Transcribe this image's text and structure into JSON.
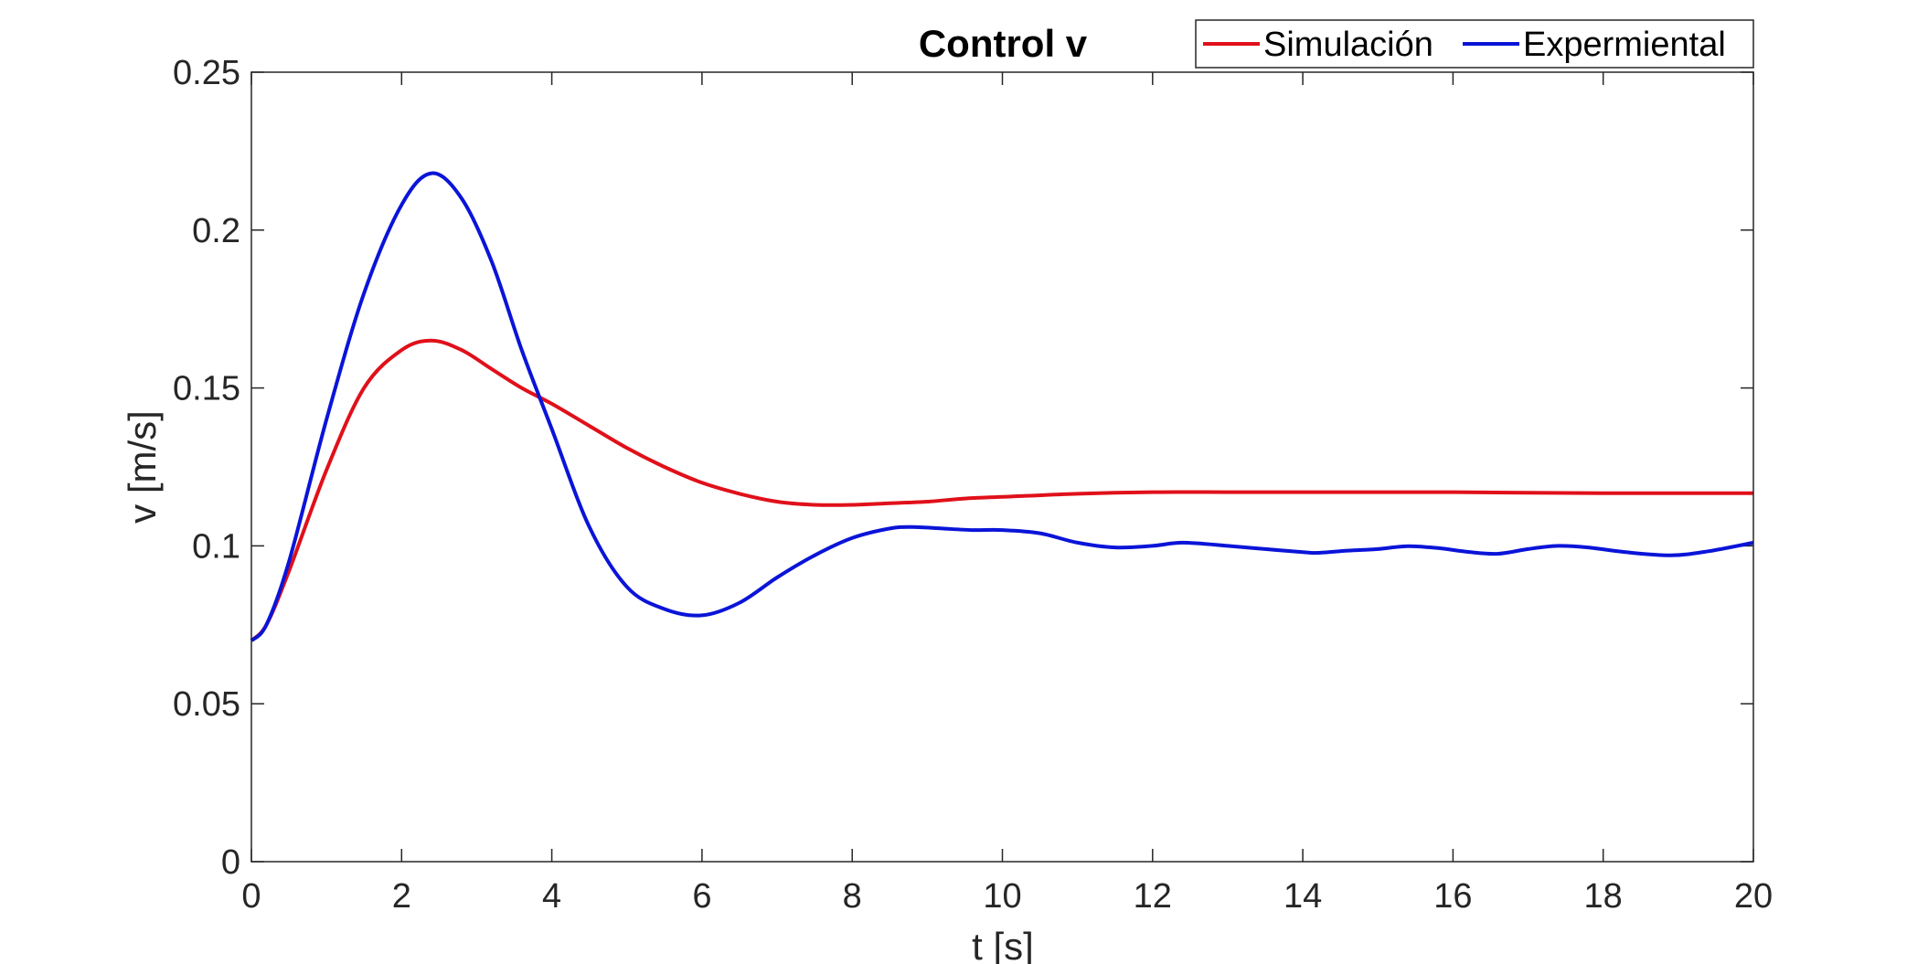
{
  "chart_data": {
    "type": "line",
    "title": "Control v",
    "xlabel": "t [s]",
    "ylabel": "v [m/s]",
    "xlim": [
      0,
      20
    ],
    "ylim": [
      0,
      0.25
    ],
    "xticks": [
      0,
      2,
      4,
      6,
      8,
      10,
      12,
      14,
      16,
      18,
      20
    ],
    "xtick_labels": [
      "0",
      "2",
      "4",
      "6",
      "8",
      "10",
      "12",
      "14",
      "16",
      "18",
      "20"
    ],
    "yticks": [
      0,
      0.05,
      0.1,
      0.15,
      0.2,
      0.25
    ],
    "ytick_labels": [
      "0",
      "0.05",
      "0.1",
      "0.15",
      "0.2",
      "0.25"
    ],
    "grid": false,
    "legend_position": "top-right",
    "series": [
      {
        "name": "Simulación",
        "color": "#e0101a",
        "x": [
          0,
          0.2,
          0.5,
          1.0,
          1.5,
          2.0,
          2.4,
          2.8,
          3.2,
          3.6,
          4.0,
          4.5,
          5.0,
          5.5,
          6.0,
          6.5,
          7.0,
          7.5,
          8.0,
          8.5,
          9.0,
          9.5,
          10.0,
          11.0,
          12.0,
          13.0,
          14.0,
          15.0,
          16.0,
          17.0,
          18.0,
          19.0,
          20.0
        ],
        "y": [
          0.07,
          0.075,
          0.092,
          0.124,
          0.15,
          0.162,
          0.165,
          0.162,
          0.156,
          0.15,
          0.145,
          0.138,
          0.131,
          0.125,
          0.12,
          0.1165,
          0.114,
          0.113,
          0.113,
          0.1135,
          0.114,
          0.115,
          0.1155,
          0.1165,
          0.117,
          0.117,
          0.117,
          0.117,
          0.117,
          0.1168,
          0.1167,
          0.1167,
          0.1167
        ]
      },
      {
        "name": "Expermiental",
        "color": "#0a14d8",
        "x": [
          0,
          0.2,
          0.5,
          1.0,
          1.5,
          2.0,
          2.4,
          2.8,
          3.2,
          3.6,
          4.0,
          4.5,
          5.0,
          5.5,
          6.0,
          6.5,
          7.0,
          7.5,
          8.0,
          8.5,
          8.8,
          9.2,
          9.6,
          10.0,
          10.5,
          11.0,
          11.5,
          12.0,
          12.4,
          13.0,
          13.5,
          14.0,
          14.2,
          14.6,
          15.0,
          15.4,
          15.8,
          16.2,
          16.6,
          17.0,
          17.4,
          17.8,
          18.3,
          18.9,
          19.4,
          20.0
        ],
        "y": [
          0.07,
          0.075,
          0.095,
          0.14,
          0.18,
          0.208,
          0.218,
          0.21,
          0.19,
          0.162,
          0.137,
          0.106,
          0.087,
          0.08,
          0.078,
          0.082,
          0.09,
          0.097,
          0.1025,
          0.1055,
          0.106,
          0.1055,
          0.105,
          0.105,
          0.104,
          0.101,
          0.0995,
          0.1,
          0.101,
          0.1,
          0.099,
          0.098,
          0.0978,
          0.0985,
          0.099,
          0.0999,
          0.0993,
          0.0981,
          0.0975,
          0.099,
          0.1,
          0.0995,
          0.098,
          0.097,
          0.0983,
          0.101
        ]
      }
    ]
  }
}
